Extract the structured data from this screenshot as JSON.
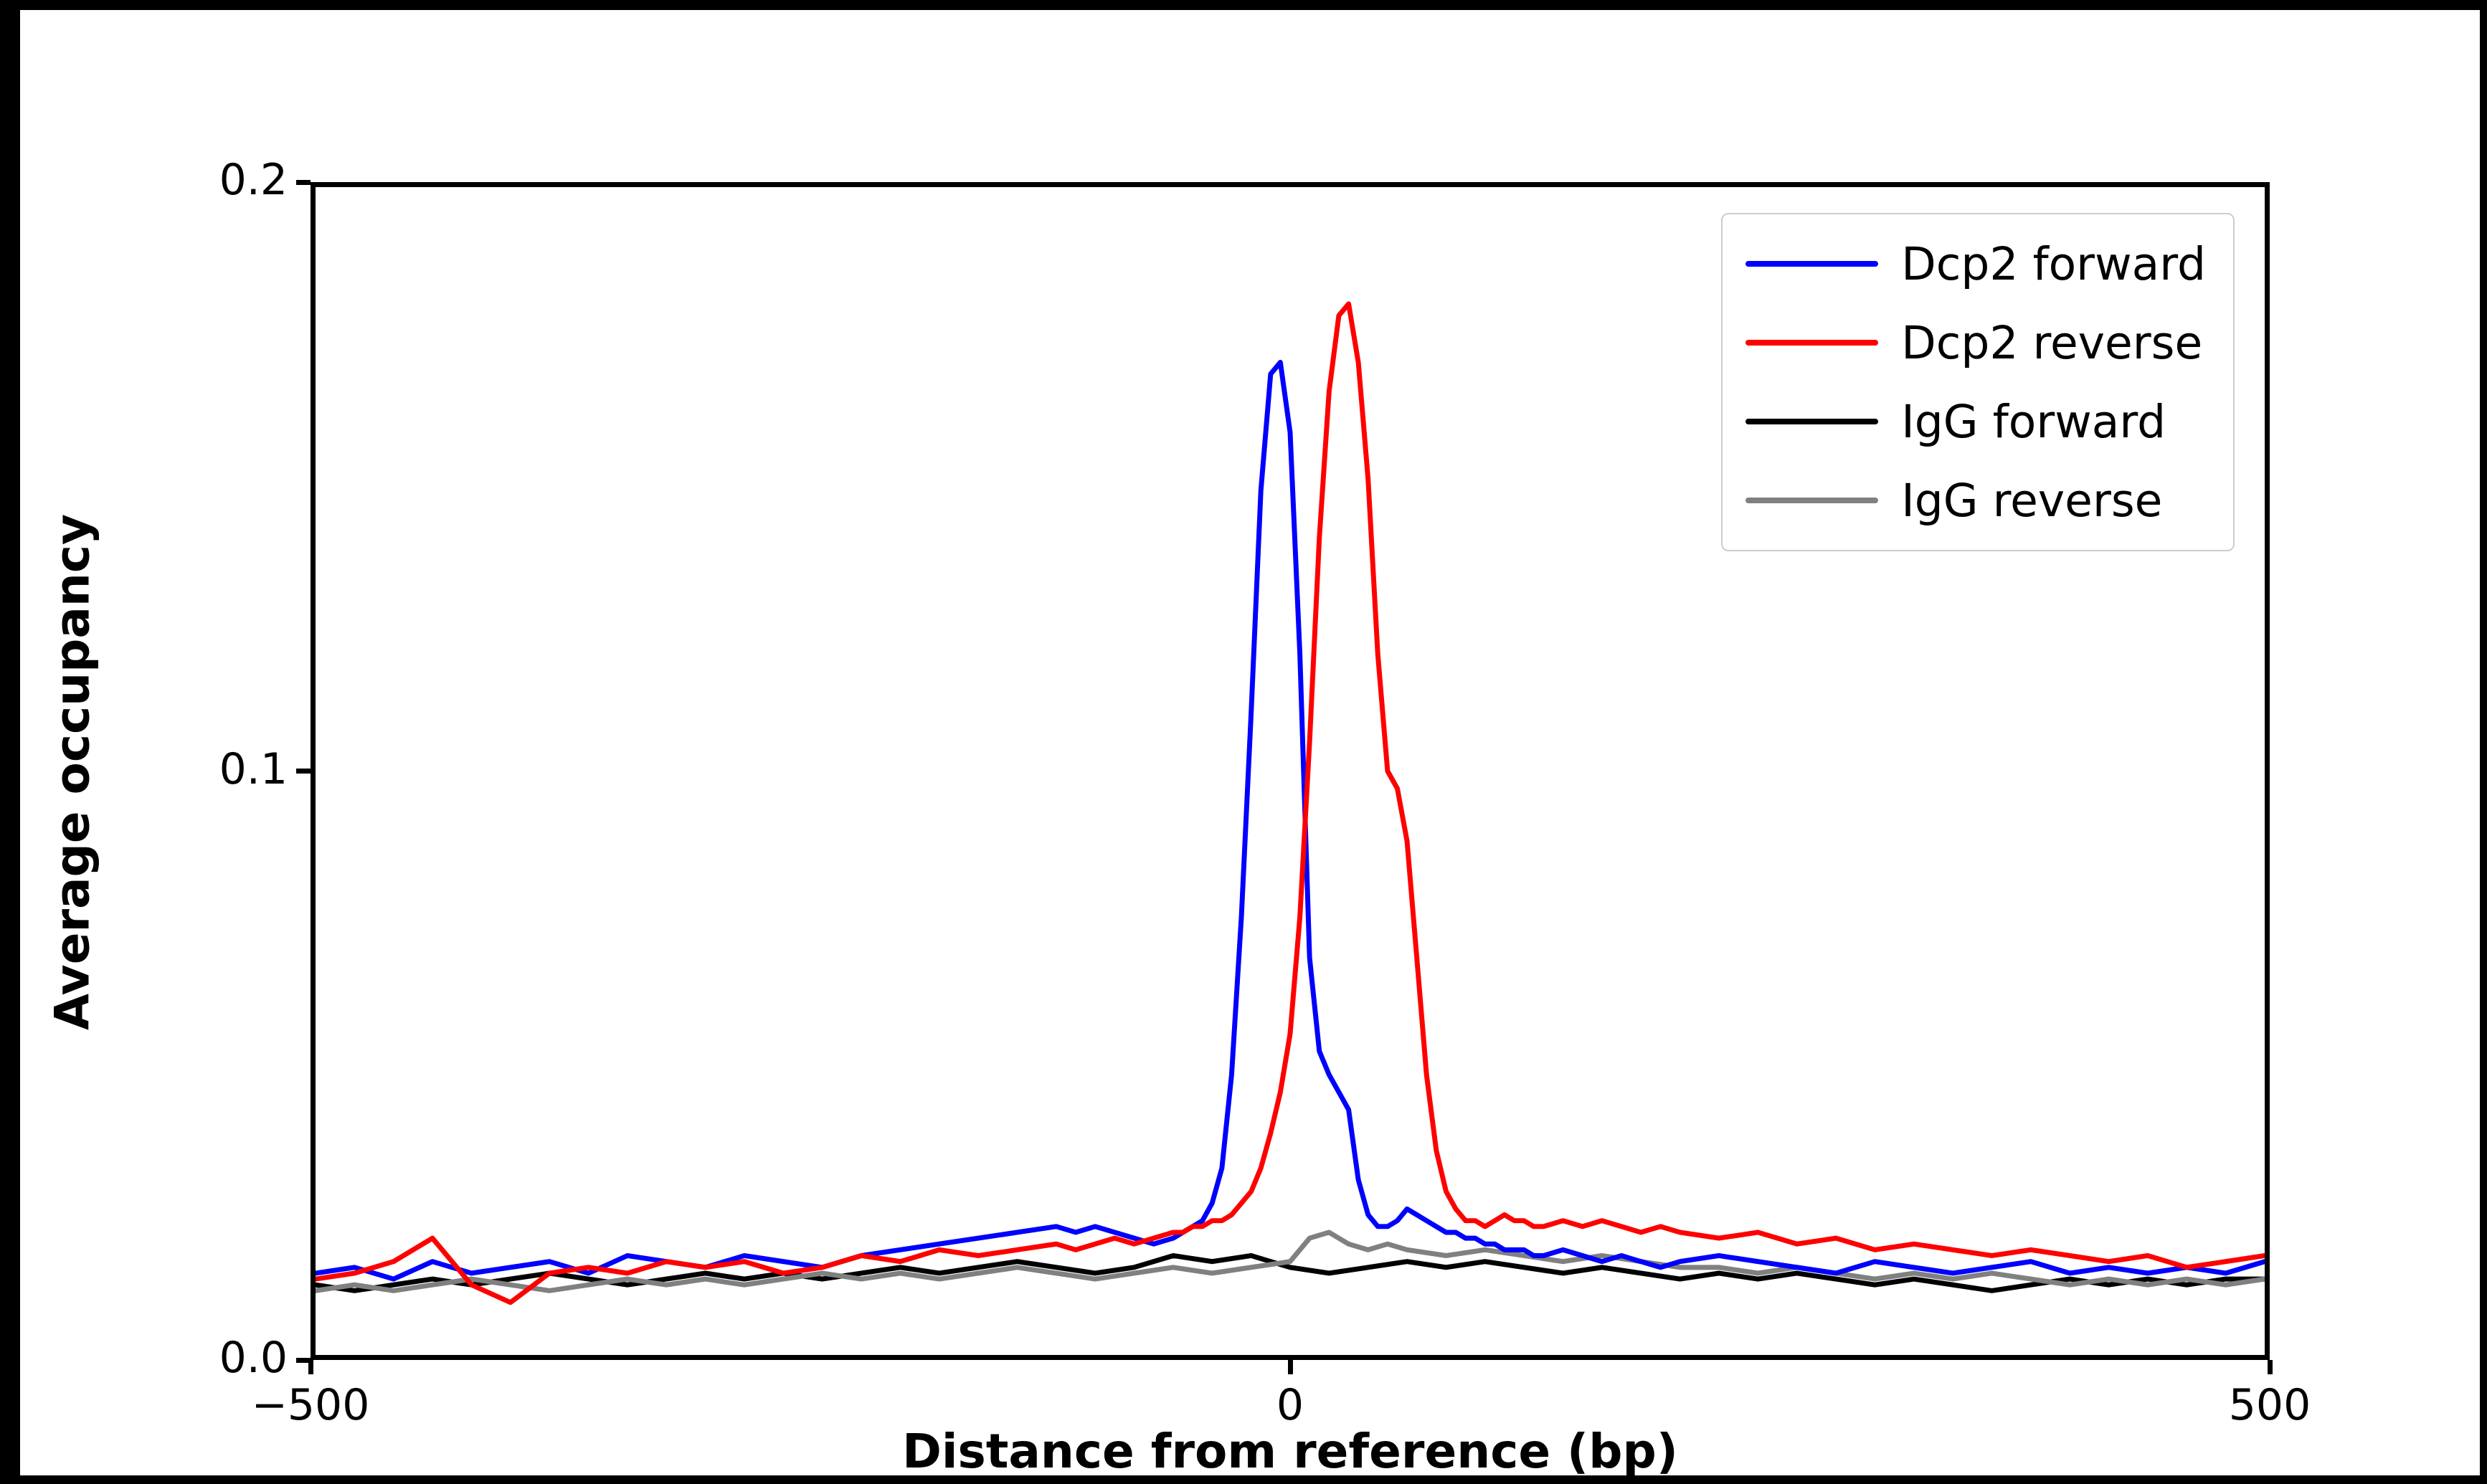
{
  "chart_data": {
    "type": "line",
    "title": "",
    "xlabel": "Distance from reference (bp)",
    "ylabel": "Average occupancy",
    "xlim": [
      -500,
      500
    ],
    "ylim": [
      0,
      0.2
    ],
    "grid": false,
    "legend_position": "upper right",
    "xticks": {
      "values": [
        -500,
        0,
        500
      ],
      "labels": [
        "−500",
        "0",
        "500"
      ]
    },
    "yticks": {
      "values": [
        0,
        0.1,
        0.2
      ],
      "labels": [
        "0.0",
        "0.1",
        "0.2"
      ]
    },
    "series": [
      {
        "name": "Dcp2 forward",
        "color": "#0000ff",
        "x": [
          -500,
          -480,
          -460,
          -440,
          -420,
          -400,
          -380,
          -360,
          -340,
          -320,
          -300,
          -280,
          -260,
          -240,
          -220,
          -200,
          -180,
          -160,
          -140,
          -120,
          -110,
          -100,
          -90,
          -80,
          -70,
          -60,
          -55,
          -50,
          -45,
          -40,
          -35,
          -30,
          -25,
          -20,
          -15,
          -10,
          -5,
          0,
          5,
          10,
          15,
          20,
          25,
          30,
          35,
          40,
          45,
          50,
          55,
          60,
          65,
          70,
          75,
          80,
          85,
          90,
          95,
          100,
          105,
          110,
          115,
          120,
          125,
          130,
          140,
          150,
          160,
          170,
          180,
          190,
          200,
          220,
          240,
          260,
          280,
          300,
          320,
          340,
          360,
          380,
          400,
          420,
          440,
          460,
          480,
          500
        ],
        "y": [
          0.014,
          0.015,
          0.013,
          0.016,
          0.014,
          0.015,
          0.016,
          0.014,
          0.017,
          0.016,
          0.015,
          0.017,
          0.016,
          0.015,
          0.017,
          0.018,
          0.019,
          0.02,
          0.021,
          0.022,
          0.021,
          0.022,
          0.021,
          0.02,
          0.019,
          0.02,
          0.021,
          0.022,
          0.023,
          0.026,
          0.032,
          0.048,
          0.075,
          0.11,
          0.148,
          0.168,
          0.17,
          0.158,
          0.12,
          0.068,
          0.052,
          0.048,
          0.045,
          0.042,
          0.03,
          0.024,
          0.022,
          0.022,
          0.023,
          0.025,
          0.024,
          0.023,
          0.022,
          0.021,
          0.021,
          0.02,
          0.02,
          0.019,
          0.019,
          0.018,
          0.018,
          0.018,
          0.017,
          0.017,
          0.018,
          0.017,
          0.016,
          0.017,
          0.016,
          0.015,
          0.016,
          0.017,
          0.016,
          0.015,
          0.014,
          0.016,
          0.015,
          0.014,
          0.015,
          0.016,
          0.014,
          0.015,
          0.014,
          0.015,
          0.014,
          0.016
        ]
      },
      {
        "name": "Dcp2 reverse",
        "color": "#ff0000",
        "x": [
          -500,
          -480,
          -460,
          -440,
          -420,
          -400,
          -380,
          -360,
          -340,
          -320,
          -300,
          -280,
          -260,
          -240,
          -220,
          -200,
          -180,
          -160,
          -140,
          -120,
          -110,
          -100,
          -90,
          -80,
          -70,
          -60,
          -55,
          -50,
          -45,
          -40,
          -35,
          -30,
          -25,
          -20,
          -15,
          -10,
          -5,
          0,
          5,
          10,
          15,
          20,
          25,
          30,
          35,
          40,
          45,
          50,
          55,
          60,
          65,
          70,
          75,
          80,
          85,
          90,
          95,
          100,
          105,
          110,
          115,
          120,
          125,
          130,
          140,
          150,
          160,
          170,
          180,
          190,
          200,
          220,
          240,
          260,
          280,
          300,
          320,
          340,
          360,
          380,
          400,
          420,
          440,
          460,
          480,
          500
        ],
        "y": [
          0.013,
          0.014,
          0.016,
          0.02,
          0.012,
          0.009,
          0.014,
          0.015,
          0.014,
          0.016,
          0.015,
          0.016,
          0.014,
          0.015,
          0.017,
          0.016,
          0.018,
          0.017,
          0.018,
          0.019,
          0.018,
          0.019,
          0.02,
          0.019,
          0.02,
          0.021,
          0.021,
          0.022,
          0.022,
          0.023,
          0.023,
          0.024,
          0.026,
          0.028,
          0.032,
          0.038,
          0.045,
          0.055,
          0.075,
          0.105,
          0.14,
          0.165,
          0.178,
          0.18,
          0.17,
          0.15,
          0.12,
          0.1,
          0.097,
          0.088,
          0.068,
          0.048,
          0.035,
          0.028,
          0.025,
          0.023,
          0.023,
          0.022,
          0.023,
          0.024,
          0.023,
          0.023,
          0.022,
          0.022,
          0.023,
          0.022,
          0.023,
          0.022,
          0.021,
          0.022,
          0.021,
          0.02,
          0.021,
          0.019,
          0.02,
          0.018,
          0.019,
          0.018,
          0.017,
          0.018,
          0.017,
          0.016,
          0.017,
          0.015,
          0.016,
          0.017
        ]
      },
      {
        "name": "IgG forward",
        "color": "#000000",
        "x": [
          -500,
          -480,
          -460,
          -440,
          -420,
          -400,
          -380,
          -360,
          -340,
          -320,
          -300,
          -280,
          -260,
          -240,
          -220,
          -200,
          -180,
          -160,
          -140,
          -120,
          -100,
          -80,
          -60,
          -40,
          -20,
          0,
          20,
          40,
          60,
          80,
          100,
          120,
          140,
          160,
          180,
          200,
          220,
          240,
          260,
          280,
          300,
          320,
          340,
          360,
          380,
          400,
          420,
          440,
          460,
          480,
          500
        ],
        "y": [
          0.012,
          0.011,
          0.012,
          0.013,
          0.012,
          0.013,
          0.014,
          0.013,
          0.012,
          0.013,
          0.014,
          0.013,
          0.014,
          0.013,
          0.014,
          0.015,
          0.014,
          0.015,
          0.016,
          0.015,
          0.014,
          0.015,
          0.017,
          0.016,
          0.017,
          0.015,
          0.014,
          0.015,
          0.016,
          0.015,
          0.016,
          0.015,
          0.014,
          0.015,
          0.014,
          0.013,
          0.014,
          0.013,
          0.014,
          0.013,
          0.012,
          0.013,
          0.012,
          0.011,
          0.012,
          0.013,
          0.012,
          0.013,
          0.012,
          0.013,
          0.013
        ]
      },
      {
        "name": "IgG reverse",
        "color": "#808080",
        "x": [
          -500,
          -480,
          -460,
          -440,
          -420,
          -400,
          -380,
          -360,
          -340,
          -320,
          -300,
          -280,
          -260,
          -240,
          -220,
          -200,
          -180,
          -160,
          -140,
          -120,
          -100,
          -80,
          -60,
          -40,
          -20,
          0,
          10,
          20,
          30,
          40,
          50,
          60,
          80,
          100,
          120,
          140,
          160,
          180,
          200,
          220,
          240,
          260,
          280,
          300,
          320,
          340,
          360,
          380,
          400,
          420,
          440,
          460,
          480,
          500
        ],
        "y": [
          0.011,
          0.012,
          0.011,
          0.012,
          0.013,
          0.012,
          0.011,
          0.012,
          0.013,
          0.012,
          0.013,
          0.012,
          0.013,
          0.014,
          0.013,
          0.014,
          0.013,
          0.014,
          0.015,
          0.014,
          0.013,
          0.014,
          0.015,
          0.014,
          0.015,
          0.016,
          0.02,
          0.021,
          0.019,
          0.018,
          0.019,
          0.018,
          0.017,
          0.018,
          0.017,
          0.016,
          0.017,
          0.016,
          0.015,
          0.015,
          0.014,
          0.015,
          0.014,
          0.013,
          0.014,
          0.013,
          0.014,
          0.013,
          0.012,
          0.013,
          0.012,
          0.013,
          0.012,
          0.013
        ]
      }
    ]
  }
}
